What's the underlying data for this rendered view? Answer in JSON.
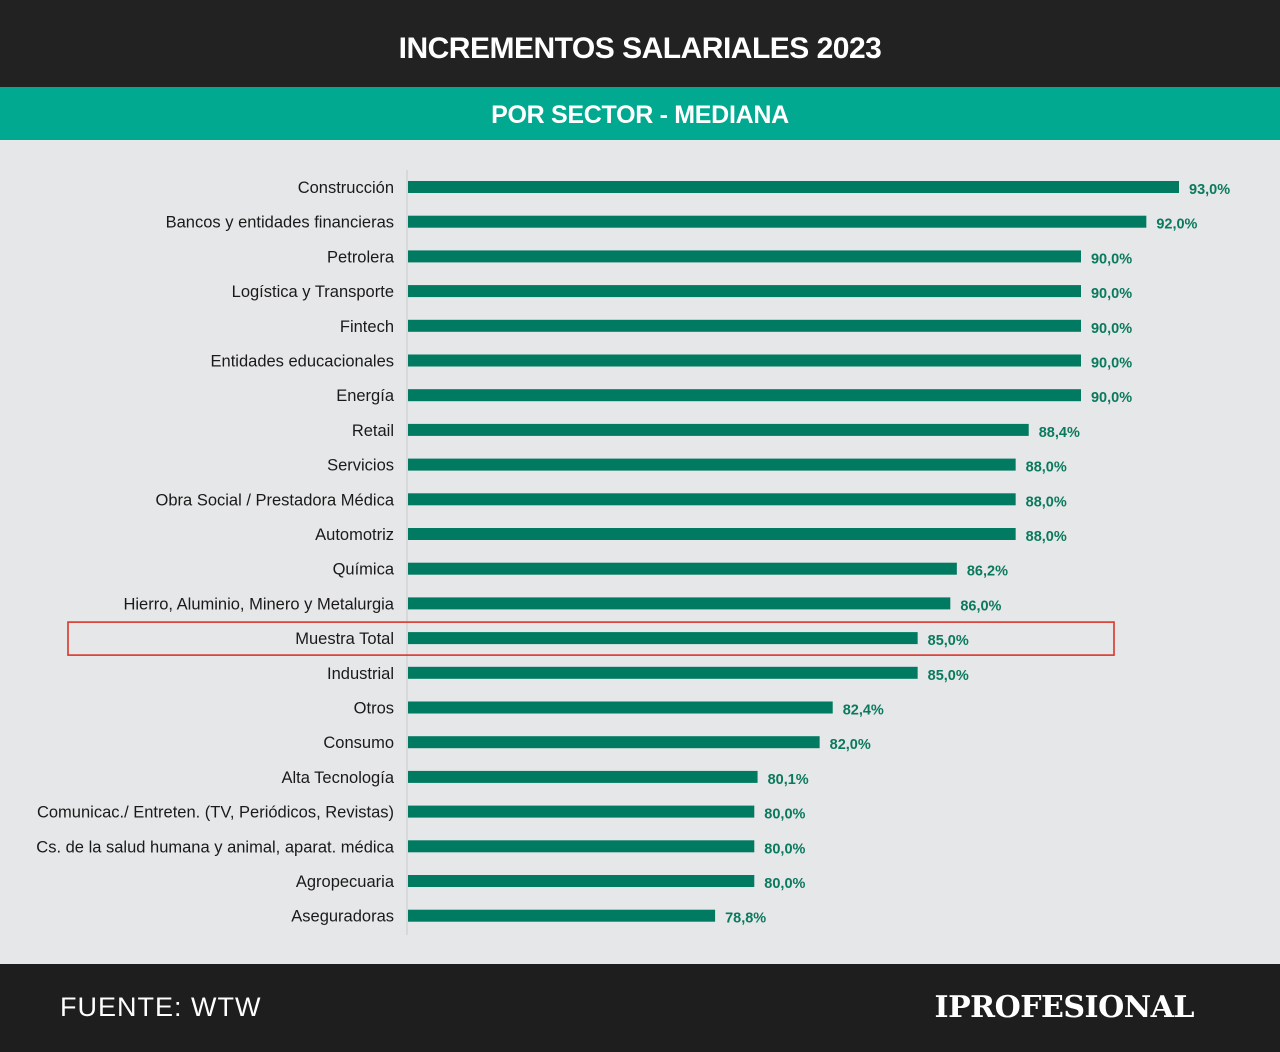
{
  "header": {
    "title": "INCREMENTOS SALARIALES 2023"
  },
  "subheader": {
    "title": "POR SECTOR - MEDIANA"
  },
  "footer": {
    "source": "FUENTE: WTW",
    "brand": "IPROFESIONAL"
  },
  "colors": {
    "bar": "#007a61",
    "value_text": "#0a7a5e",
    "highlight_box": "#d9352b",
    "header_bg": "#222222",
    "subheader_bg": "#00a98f",
    "background": "#e6e7e8"
  },
  "chart_data": {
    "type": "bar",
    "orientation": "horizontal",
    "title": "INCREMENTOS SALARIALES 2023",
    "subtitle": "POR SECTOR - MEDIANA",
    "categories": [
      "Construcción",
      "Bancos y entidades financieras",
      "Petrolera",
      "Logística y Transporte",
      "Fintech",
      "Entidades educacionales",
      "Energía",
      "Retail",
      "Servicios",
      "Obra Social / Prestadora Médica",
      "Automotriz",
      "Química",
      "Hierro, Aluminio, Minero y Metalurgia",
      "Muestra Total",
      "Industrial",
      "Otros",
      "Consumo",
      "Alta Tecnología",
      "Comunicac./ Entreten. (TV, Periódicos, Revistas)",
      "Cs. de la salud humana y animal, aparat. médica",
      "Agropecuaria",
      "Aseguradoras"
    ],
    "values": [
      93.0,
      92.0,
      90.0,
      90.0,
      90.0,
      90.0,
      90.0,
      88.4,
      88.0,
      88.0,
      88.0,
      86.2,
      86.0,
      85.0,
      85.0,
      82.4,
      82.0,
      80.1,
      80.0,
      80.0,
      80.0,
      78.8
    ],
    "value_labels": [
      "93,0%",
      "92,0%",
      "90,0%",
      "90,0%",
      "90,0%",
      "90,0%",
      "90,0%",
      "88,4%",
      "88,0%",
      "88,0%",
      "88,0%",
      "86,2%",
      "86,0%",
      "85,0%",
      "85,0%",
      "82,4%",
      "82,0%",
      "80,1%",
      "80,0%",
      "80,0%",
      "80,0%",
      "78,8%"
    ],
    "highlighted_category": "Muestra Total",
    "xlim": [
      69.4,
      93.0
    ],
    "grid": false,
    "legend": "none"
  }
}
